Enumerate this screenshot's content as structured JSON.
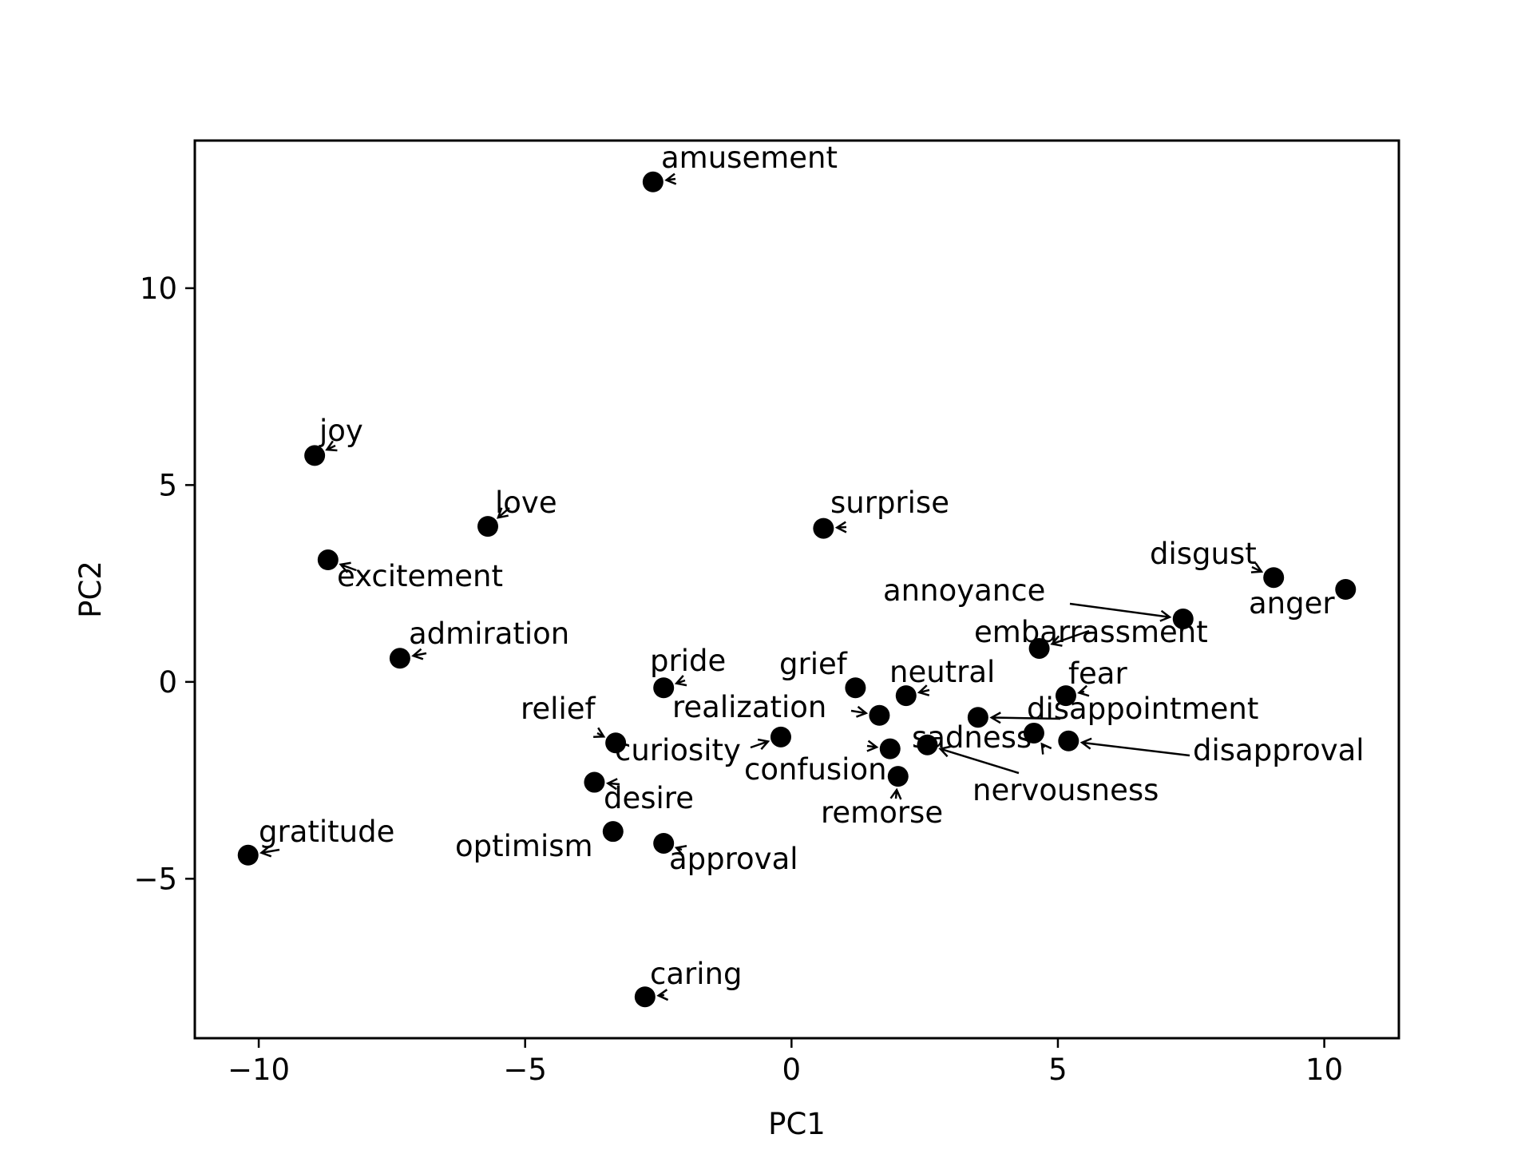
{
  "chart_data": {
    "type": "scatter",
    "title": "",
    "xlabel": "PC1",
    "ylabel": "PC2",
    "xlim": [
      -11.2,
      11.4
    ],
    "ylim": [
      -9.05,
      13.75
    ],
    "xticks": [
      -10,
      -5,
      0,
      5,
      10
    ],
    "yticks": [
      -5,
      0,
      5,
      10
    ],
    "xtick_labels": [
      "−10",
      "−5",
      "0",
      "5",
      "10"
    ],
    "ytick_labels": [
      "−5",
      "0",
      "5",
      "10"
    ],
    "grid": false,
    "legend": "none",
    "marker_color": "#000000",
    "points": [
      {
        "label": "amusement",
        "x": -2.6,
        "y": 12.7
      },
      {
        "label": "joy",
        "x": -8.95,
        "y": 5.75
      },
      {
        "label": "love",
        "x": -5.7,
        "y": 3.95
      },
      {
        "label": "surprise",
        "x": 0.6,
        "y": 3.9
      },
      {
        "label": "excitement",
        "x": -8.7,
        "y": 3.1
      },
      {
        "label": "disgust",
        "x": 9.05,
        "y": 2.65
      },
      {
        "label": "anger",
        "x": 10.4,
        "y": 2.35
      },
      {
        "label": "annoyance",
        "x": 7.35,
        "y": 1.6
      },
      {
        "label": "embarrassment",
        "x": 4.65,
        "y": 0.85
      },
      {
        "label": "admiration",
        "x": -7.35,
        "y": 0.6
      },
      {
        "label": "pride",
        "x": -2.4,
        "y": -0.15
      },
      {
        "label": "grief",
        "x": 1.2,
        "y": -0.15
      },
      {
        "label": "neutral",
        "x": 2.15,
        "y": -0.35
      },
      {
        "label": "fear",
        "x": 5.15,
        "y": -0.35
      },
      {
        "label": "realization",
        "x": 1.65,
        "y": -0.85
      },
      {
        "label": "disappointment",
        "x": 3.5,
        "y": -0.9
      },
      {
        "label": "relief",
        "x": -3.3,
        "y": -1.55
      },
      {
        "label": "curiosity",
        "x": -0.2,
        "y": -1.4
      },
      {
        "label": "sadness",
        "x": 4.55,
        "y": -1.3
      },
      {
        "label": "disapproval",
        "x": 5.2,
        "y": -1.5
      },
      {
        "label": "nervousness",
        "x": 2.55,
        "y": -1.6
      },
      {
        "label": "confusion",
        "x": 1.85,
        "y": -1.7
      },
      {
        "label": "remorse",
        "x": 2.0,
        "y": -2.4
      },
      {
        "label": "desire",
        "x": -3.7,
        "y": -2.55
      },
      {
        "label": "optimism",
        "x": -3.35,
        "y": -3.8
      },
      {
        "label": "approval",
        "x": -2.4,
        "y": -4.1
      },
      {
        "label": "gratitude",
        "x": -10.2,
        "y": -4.4
      },
      {
        "label": "caring",
        "x": -2.75,
        "y": -8.0
      }
    ]
  }
}
